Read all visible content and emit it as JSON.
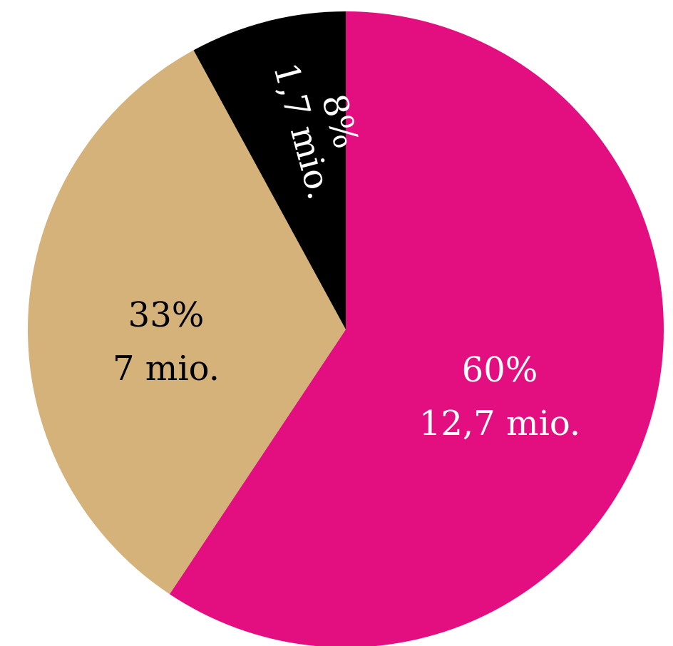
{
  "chart_data": {
    "type": "pie",
    "start_angle_deg": 0,
    "direction": "clockwise",
    "slices": [
      {
        "label": "12,7 mio.",
        "percent_label": "60%",
        "value": 12.7,
        "color": "#E30E7F",
        "text_color": "#FFFFFF"
      },
      {
        "label": "7 mio.",
        "percent_label": "33%",
        "value": 7.0,
        "color": "#D4B27A",
        "text_color": "#000000"
      },
      {
        "label": "1,7 mio.",
        "percent_label": "8%",
        "value": 1.7,
        "color": "#000000",
        "text_color": "#FFFFFF"
      }
    ]
  }
}
